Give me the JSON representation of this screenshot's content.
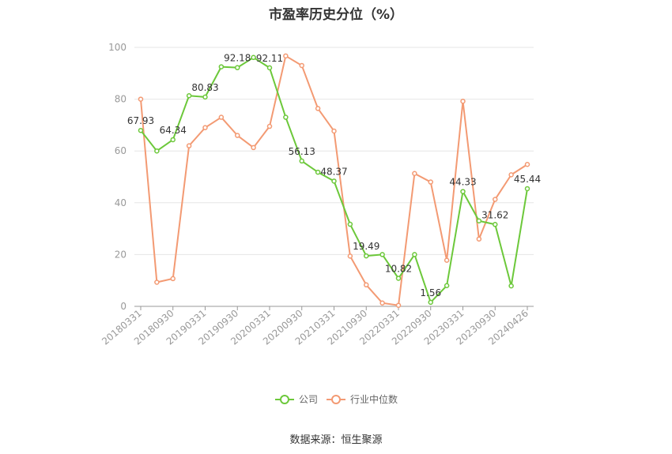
{
  "title": "市盈率历史分位（%）",
  "source": "数据来源：恒生聚源",
  "colors": {
    "company": "#6cc83a",
    "industry": "#f39a73",
    "axis": "#999999",
    "grid": "#e6e6e6",
    "text": "#333333"
  },
  "chart_data": {
    "type": "line",
    "title": "市盈率历史分位（%）",
    "ylim": [
      0,
      100
    ],
    "yticks": [
      0,
      20,
      40,
      60,
      80,
      100
    ],
    "grid": true,
    "legend": "bottom-center",
    "x": [
      "20180331",
      "20180630",
      "20180930",
      "20181231",
      "20190331",
      "20190630",
      "20190930",
      "20191231",
      "20200331",
      "20200630",
      "20200930",
      "20201231",
      "20210331",
      "20210630",
      "20210930",
      "20211231",
      "20220331",
      "20220630",
      "20220930",
      "20221231",
      "20230331",
      "20230630",
      "20230930",
      "20231231",
      "20240426"
    ],
    "xtick_labels": [
      "20180331",
      "20180930",
      "20190331",
      "20190930",
      "20200331",
      "20200930",
      "20210331",
      "20210930",
      "20220331",
      "20220930",
      "20230331",
      "20230930",
      "20240426"
    ],
    "series": [
      {
        "name": "公司",
        "values": [
          67.93,
          60,
          64.34,
          81.33,
          80.83,
          92.5,
          92.18,
          96.1,
          92.11,
          73,
          56.13,
          51.8,
          48.37,
          31.7,
          19.49,
          20,
          10.82,
          20,
          1.56,
          8,
          44.33,
          33,
          31.62,
          7.9,
          45.44
        ],
        "labeled": [
          67.93,
          64.34,
          80.83,
          92.18,
          92.11,
          56.13,
          48.37,
          19.49,
          10.82,
          1.56,
          44.33,
          31.62,
          45.44
        ],
        "label_texts": [
          "67.93",
          "64.34",
          "80.83",
          "92.18",
          "92.11",
          "56.13",
          "48.37",
          "19.49",
          "10.82",
          "1.56",
          "44.33",
          "31.62",
          "45.44"
        ]
      },
      {
        "name": "行业中位数",
        "values": [
          80,
          9.3,
          10.7,
          62,
          69,
          73,
          66,
          61.3,
          69.5,
          96.7,
          93,
          76.4,
          67.7,
          19.4,
          8.3,
          1.3,
          0.4,
          51.3,
          48,
          17.8,
          79.2,
          26,
          41.3,
          50.8,
          54.8
        ]
      }
    ]
  }
}
